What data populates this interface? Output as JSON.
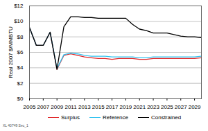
{
  "chart_data": {
    "type": "line",
    "y_label": "Real 2007 $/MMBTU",
    "annotation": "XL 40749 Sec_1",
    "x": [
      2005,
      2006,
      2007,
      2008,
      2009,
      2010,
      2011,
      2012,
      2013,
      2014,
      2015,
      2016,
      2017,
      2018,
      2019,
      2020,
      2021,
      2022,
      2023,
      2024,
      2025,
      2026,
      2027,
      2028,
      2029,
      2030
    ],
    "series": [
      {
        "name": "Surplus",
        "color": "#e0282a",
        "values": [
          9.2,
          6.9,
          6.9,
          8.6,
          3.8,
          5.6,
          5.8,
          5.6,
          5.4,
          5.3,
          5.2,
          5.2,
          5.1,
          5.2,
          5.2,
          5.2,
          5.1,
          5.1,
          5.2,
          5.2,
          5.2,
          5.2,
          5.2,
          5.2,
          5.2,
          5.3
        ]
      },
      {
        "name": "Reference",
        "color": "#33c3f0",
        "values": [
          9.2,
          6.9,
          6.9,
          8.6,
          3.9,
          5.7,
          5.9,
          5.8,
          5.6,
          5.5,
          5.5,
          5.5,
          5.4,
          5.4,
          5.4,
          5.4,
          5.3,
          5.3,
          5.4,
          5.4,
          5.4,
          5.4,
          5.4,
          5.4,
          5.4,
          5.5
        ]
      },
      {
        "name": "Constrained",
        "color": "#000000",
        "values": [
          9.2,
          6.9,
          6.9,
          8.6,
          3.8,
          9.3,
          10.6,
          10.6,
          10.5,
          10.5,
          10.4,
          10.4,
          10.4,
          10.4,
          10.4,
          9.6,
          9.0,
          8.8,
          8.5,
          8.5,
          8.5,
          8.3,
          8.1,
          8.0,
          8.0,
          7.9
        ]
      }
    ],
    "xlim": [
      2005,
      2030
    ],
    "xticks": [
      2005,
      2007,
      2009,
      2011,
      2013,
      2015,
      2017,
      2019,
      2021,
      2023,
      2025,
      2027,
      2029
    ],
    "ylim": [
      0,
      12
    ],
    "yticks": [
      {
        "value": 0,
        "label": "$0"
      },
      {
        "value": 2,
        "label": "$2"
      },
      {
        "value": 4,
        "label": "$4"
      },
      {
        "value": 6,
        "label": "$6"
      },
      {
        "value": 8,
        "label": "$8"
      },
      {
        "value": 10,
        "label": "$10"
      },
      {
        "value": 12,
        "label": "$12"
      }
    ],
    "grid": true,
    "legend": "bottom"
  }
}
